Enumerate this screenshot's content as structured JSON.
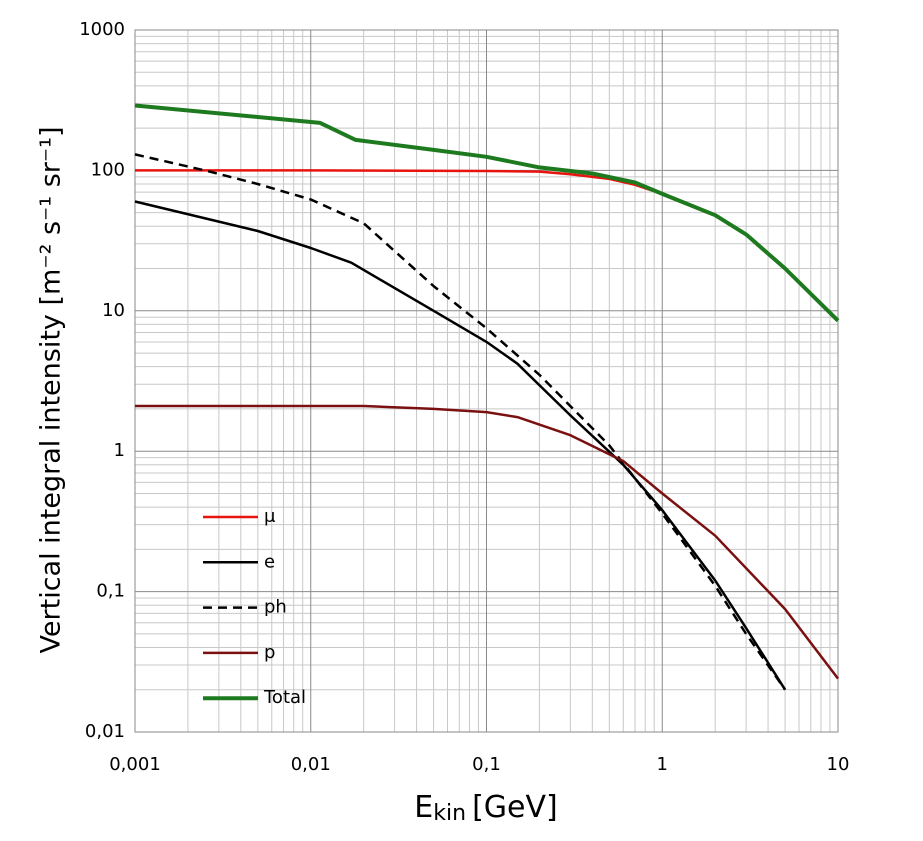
{
  "chart_data": {
    "type": "line",
    "ylabel": "Vertical integral intensity [m⁻² s⁻¹ sr⁻¹]",
    "xlabel": [
      "E",
      "kin",
      "[GeV]"
    ],
    "xscale": "log",
    "yscale": "log",
    "xlim": [
      0.001,
      10
    ],
    "ylim": [
      0.01,
      1000
    ],
    "xticks": [
      {
        "value": 0.001,
        "label": "0,001"
      },
      {
        "value": 0.01,
        "label": "0,01"
      },
      {
        "value": 0.1,
        "label": "0,1"
      },
      1,
      10
    ],
    "yticks": [
      {
        "value": 0.01,
        "label": "0,01"
      },
      {
        "value": 0.1,
        "label": "0,1"
      },
      1,
      10,
      100,
      1000
    ],
    "grid": true,
    "minor_grid": true,
    "legend": "lower left",
    "series": [
      {
        "name": "μ",
        "color": "#e8140f",
        "dash": false,
        "x": [
          0.001,
          0.01,
          0.1,
          0.2,
          0.3,
          0.5,
          0.7,
          1,
          1.5,
          1.8
        ],
        "values": [
          100,
          100,
          99,
          98,
          94,
          87,
          79,
          68,
          55,
          50
        ]
      },
      {
        "name": "e",
        "color": "#000000",
        "dash": false,
        "x": [
          0.001,
          0.005,
          0.01,
          0.017,
          0.05,
          0.1,
          0.15,
          0.3,
          0.6,
          1,
          2,
          3,
          5
        ],
        "values": [
          60,
          37,
          28,
          22,
          10,
          6,
          4.2,
          1.8,
          0.8,
          0.38,
          0.12,
          0.055,
          0.02
        ]
      },
      {
        "name": "ph",
        "color": "#000000",
        "dash": true,
        "x": [
          0.001,
          0.0025,
          0.005,
          0.01,
          0.02,
          0.05,
          0.1,
          0.2,
          0.5,
          1,
          2,
          3,
          5
        ],
        "values": [
          130,
          100,
          80,
          62,
          42,
          15,
          7.5,
          3.5,
          1.1,
          0.36,
          0.11,
          0.05,
          0.02
        ]
      },
      {
        "name": "p",
        "color": "#7b1010",
        "dash": false,
        "x": [
          0.001,
          0.02,
          0.05,
          0.1,
          0.15,
          0.3,
          0.6,
          1,
          2,
          5,
          10
        ],
        "values": [
          2.1,
          2.1,
          2.0,
          1.9,
          1.75,
          1.3,
          0.85,
          0.5,
          0.25,
          0.075,
          0.024
        ]
      },
      {
        "name": "Total",
        "color": "#1e7a1e",
        "dash": false,
        "x": [
          0.001,
          0.005,
          0.0113,
          0.018,
          0.05,
          0.1,
          0.2,
          0.4,
          0.7,
          1,
          2,
          3,
          5,
          10
        ],
        "values": [
          290,
          240,
          218,
          165,
          140,
          125,
          105,
          95,
          82,
          68,
          48,
          35,
          20,
          8.5
        ]
      }
    ]
  }
}
